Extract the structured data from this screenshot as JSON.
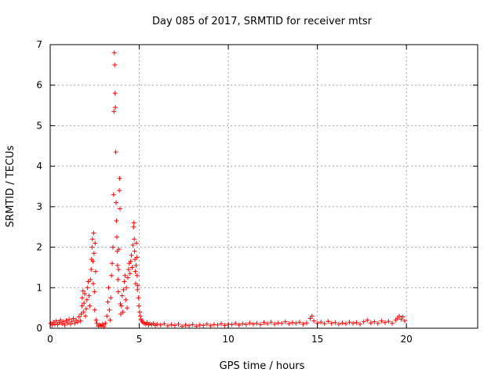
{
  "chart_data": {
    "type": "scatter",
    "title": "Day 085 of 2017, SRMTID for receiver mtsr",
    "xlabel": "GPS time / hours",
    "ylabel": "SRMTID / TECUs",
    "xlim": [
      0,
      24
    ],
    "ylim": [
      0,
      7
    ],
    "xticks": [
      0,
      5,
      10,
      15,
      20
    ],
    "yticks": [
      0,
      1,
      2,
      3,
      4,
      5,
      6,
      7
    ],
    "grid": true,
    "marker": "+",
    "series": [
      {
        "name": "SRMTID",
        "color": "#ff0000",
        "points": [
          [
            0.02,
            0.12
          ],
          [
            0.1,
            0.08
          ],
          [
            0.18,
            0.15
          ],
          [
            0.26,
            0.1
          ],
          [
            0.34,
            0.18
          ],
          [
            0.42,
            0.09
          ],
          [
            0.5,
            0.14
          ],
          [
            0.58,
            0.2
          ],
          [
            0.66,
            0.11
          ],
          [
            0.74,
            0.16
          ],
          [
            0.82,
            0.08
          ],
          [
            0.9,
            0.19
          ],
          [
            0.98,
            0.13
          ],
          [
            1.06,
            0.22
          ],
          [
            1.14,
            0.1
          ],
          [
            1.22,
            0.17
          ],
          [
            1.3,
            0.24
          ],
          [
            1.38,
            0.12
          ],
          [
            1.46,
            0.2
          ],
          [
            1.54,
            0.15
          ],
          [
            1.62,
            0.28
          ],
          [
            1.7,
            0.18
          ],
          [
            1.74,
            0.35
          ],
          [
            1.78,
            0.55
          ],
          [
            1.8,
            0.75
          ],
          [
            1.84,
            0.92
          ],
          [
            1.86,
            0.4
          ],
          [
            1.9,
            0.62
          ],
          [
            1.94,
            0.85
          ],
          [
            1.98,
            0.3
          ],
          [
            2.02,
            0.48
          ],
          [
            2.06,
            0.7
          ],
          [
            2.1,
            1.0
          ],
          [
            2.14,
            1.15
          ],
          [
            2.18,
            0.8
          ],
          [
            2.22,
            0.55
          ],
          [
            2.26,
            1.2
          ],
          [
            2.3,
            1.45
          ],
          [
            2.32,
            1.7
          ],
          [
            2.35,
            2.0
          ],
          [
            2.37,
            2.2
          ],
          [
            2.4,
            1.65
          ],
          [
            2.42,
            1.1
          ],
          [
            2.44,
            2.35
          ],
          [
            2.46,
            1.85
          ],
          [
            2.48,
            0.9
          ],
          [
            2.5,
            0.45
          ],
          [
            2.52,
            2.1
          ],
          [
            2.55,
            1.4
          ],
          [
            2.58,
            0.2
          ],
          [
            2.62,
            0.12
          ],
          [
            2.7,
            0.05
          ],
          [
            2.78,
            0.08
          ],
          [
            2.86,
            0.06
          ],
          [
            2.94,
            0.1
          ],
          [
            3.02,
            0.04
          ],
          [
            3.1,
            0.12
          ],
          [
            3.18,
            0.3
          ],
          [
            3.24,
            0.65
          ],
          [
            3.28,
            1.0
          ],
          [
            3.32,
            0.45
          ],
          [
            3.36,
            0.2
          ],
          [
            3.4,
            0.75
          ],
          [
            3.44,
            1.3
          ],
          [
            3.48,
            1.6
          ],
          [
            3.52,
            2.0
          ],
          [
            3.56,
            3.3
          ],
          [
            3.58,
            5.35
          ],
          [
            3.6,
            6.8
          ],
          [
            3.62,
            6.5
          ],
          [
            3.64,
            5.8
          ],
          [
            3.66,
            5.45
          ],
          [
            3.68,
            4.35
          ],
          [
            3.7,
            3.1
          ],
          [
            3.72,
            2.65
          ],
          [
            3.74,
            2.25
          ],
          [
            3.76,
            1.9
          ],
          [
            3.78,
            1.55
          ],
          [
            3.8,
            1.2
          ],
          [
            3.82,
            0.9
          ],
          [
            3.84,
            1.45
          ],
          [
            3.86,
            1.95
          ],
          [
            3.88,
            3.4
          ],
          [
            3.9,
            3.7
          ],
          [
            3.92,
            2.95
          ],
          [
            3.94,
            0.6
          ],
          [
            3.96,
            0.35
          ],
          [
            4.0,
            0.55
          ],
          [
            4.04,
            0.8
          ],
          [
            4.08,
            0.4
          ],
          [
            4.12,
            0.95
          ],
          [
            4.16,
            1.15
          ],
          [
            4.2,
            1.3
          ],
          [
            4.24,
            0.7
          ],
          [
            4.28,
            1.0
          ],
          [
            4.32,
            0.5
          ],
          [
            4.36,
            1.25
          ],
          [
            4.4,
            1.45
          ],
          [
            4.44,
            1.6
          ],
          [
            4.48,
            1.35
          ],
          [
            4.52,
            1.65
          ],
          [
            4.56,
            1.8
          ],
          [
            4.6,
            1.5
          ],
          [
            4.64,
            2.05
          ],
          [
            4.68,
            2.5
          ],
          [
            4.7,
            2.6
          ],
          [
            4.72,
            2.2
          ],
          [
            4.74,
            1.9
          ],
          [
            4.76,
            1.7
          ],
          [
            4.78,
            1.4
          ],
          [
            4.8,
            1.1
          ],
          [
            4.82,
            1.55
          ],
          [
            4.84,
            2.1
          ],
          [
            4.86,
            1.75
          ],
          [
            4.88,
            1.3
          ],
          [
            4.9,
            0.95
          ],
          [
            4.92,
            1.05
          ],
          [
            4.95,
            0.75
          ],
          [
            4.98,
            0.55
          ],
          [
            5.02,
            0.4
          ],
          [
            5.06,
            0.3
          ],
          [
            5.1,
            0.22
          ],
          [
            5.14,
            0.18
          ],
          [
            5.2,
            0.15
          ],
          [
            5.28,
            0.12
          ],
          [
            5.36,
            0.1
          ],
          [
            5.44,
            0.14
          ],
          [
            5.52,
            0.08
          ],
          [
            5.6,
            0.11
          ],
          [
            5.7,
            0.09
          ],
          [
            5.8,
            0.12
          ],
          [
            5.9,
            0.07
          ],
          [
            6.0,
            0.1
          ],
          [
            6.2,
            0.08
          ],
          [
            6.4,
            0.11
          ],
          [
            6.6,
            0.06
          ],
          [
            6.8,
            0.09
          ],
          [
            7.0,
            0.07
          ],
          [
            7.2,
            0.1
          ],
          [
            7.4,
            0.05
          ],
          [
            7.6,
            0.08
          ],
          [
            7.8,
            0.06
          ],
          [
            8.0,
            0.09
          ],
          [
            8.2,
            0.05
          ],
          [
            8.4,
            0.08
          ],
          [
            8.6,
            0.07
          ],
          [
            8.8,
            0.1
          ],
          [
            9.0,
            0.06
          ],
          [
            9.2,
            0.09
          ],
          [
            9.4,
            0.08
          ],
          [
            9.6,
            0.11
          ],
          [
            9.8,
            0.07
          ],
          [
            10.0,
            0.1
          ],
          [
            10.2,
            0.09
          ],
          [
            10.4,
            0.12
          ],
          [
            10.6,
            0.08
          ],
          [
            10.8,
            0.11
          ],
          [
            11.0,
            0.09
          ],
          [
            11.2,
            0.13
          ],
          [
            11.4,
            0.1
          ],
          [
            11.6,
            0.12
          ],
          [
            11.8,
            0.09
          ],
          [
            12.0,
            0.14
          ],
          [
            12.2,
            0.11
          ],
          [
            12.4,
            0.15
          ],
          [
            12.6,
            0.1
          ],
          [
            12.8,
            0.13
          ],
          [
            13.0,
            0.12
          ],
          [
            13.2,
            0.16
          ],
          [
            13.4,
            0.11
          ],
          [
            13.6,
            0.14
          ],
          [
            13.8,
            0.12
          ],
          [
            14.0,
            0.15
          ],
          [
            14.2,
            0.1
          ],
          [
            14.4,
            0.13
          ],
          [
            14.6,
            0.24
          ],
          [
            14.7,
            0.3
          ],
          [
            14.8,
            0.18
          ],
          [
            15.0,
            0.12
          ],
          [
            15.2,
            0.15
          ],
          [
            15.4,
            0.11
          ],
          [
            15.6,
            0.17
          ],
          [
            15.8,
            0.12
          ],
          [
            16.0,
            0.14
          ],
          [
            16.2,
            0.1
          ],
          [
            16.4,
            0.13
          ],
          [
            16.6,
            0.11
          ],
          [
            16.8,
            0.15
          ],
          [
            17.0,
            0.12
          ],
          [
            17.2,
            0.14
          ],
          [
            17.4,
            0.1
          ],
          [
            17.6,
            0.16
          ],
          [
            17.8,
            0.2
          ],
          [
            18.0,
            0.13
          ],
          [
            18.2,
            0.16
          ],
          [
            18.4,
            0.12
          ],
          [
            18.6,
            0.18
          ],
          [
            18.8,
            0.14
          ],
          [
            19.0,
            0.17
          ],
          [
            19.2,
            0.12
          ],
          [
            19.4,
            0.2
          ],
          [
            19.5,
            0.25
          ],
          [
            19.6,
            0.3
          ],
          [
            19.7,
            0.22
          ],
          [
            19.8,
            0.28
          ],
          [
            19.9,
            0.18
          ]
        ]
      }
    ]
  }
}
